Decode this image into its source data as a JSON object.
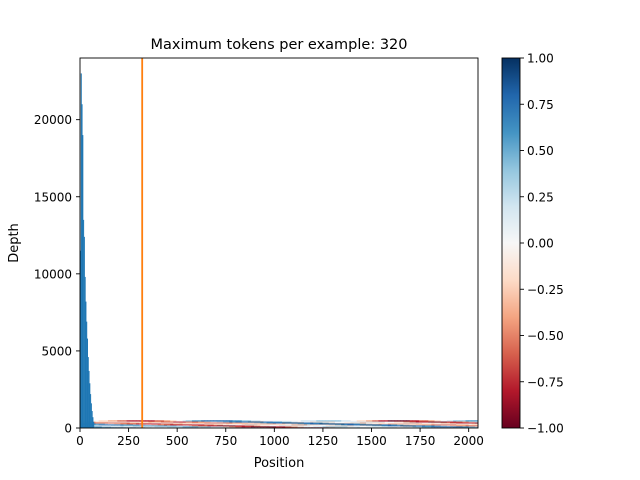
{
  "chart_data": {
    "type": "bar",
    "title": "Maximum tokens per example: 320",
    "xlabel": "Position",
    "ylabel": "Depth",
    "xlim": [
      0,
      2048
    ],
    "ylim": [
      0,
      24000
    ],
    "x_ticks": [
      0,
      250,
      500,
      750,
      1000,
      1250,
      1500,
      1750,
      2000
    ],
    "y_ticks": [
      0,
      5000,
      10000,
      15000,
      20000
    ],
    "bar_color": "#1f77b4",
    "histogram": {
      "x": [
        0,
        4,
        8,
        12,
        16,
        20,
        24,
        28,
        32,
        36,
        40,
        44,
        48,
        52,
        56,
        60,
        64,
        68
      ],
      "values": [
        11500,
        23000,
        21000,
        19000,
        13500,
        12400,
        9800,
        8200,
        6900,
        5800,
        4600,
        3700,
        2900,
        2200,
        1600,
        1100,
        700,
        400
      ]
    },
    "vline": {
      "x": 320,
      "color": "#ff7f0e"
    },
    "heatmap": {
      "y_range": [
        0,
        500
      ],
      "rows": 8,
      "cmap": "RdBu",
      "vmin": -1,
      "vmax": 1
    },
    "colorbar": {
      "ticks": [
        1.0,
        0.75,
        0.5,
        0.25,
        0.0,
        -0.25,
        -0.5,
        -0.75,
        -1.0
      ],
      "tick_labels": [
        "1.00",
        "0.75",
        "0.50",
        "0.25",
        "0.00",
        "−0.25",
        "−0.50",
        "−0.75",
        "−1.00"
      ]
    }
  }
}
